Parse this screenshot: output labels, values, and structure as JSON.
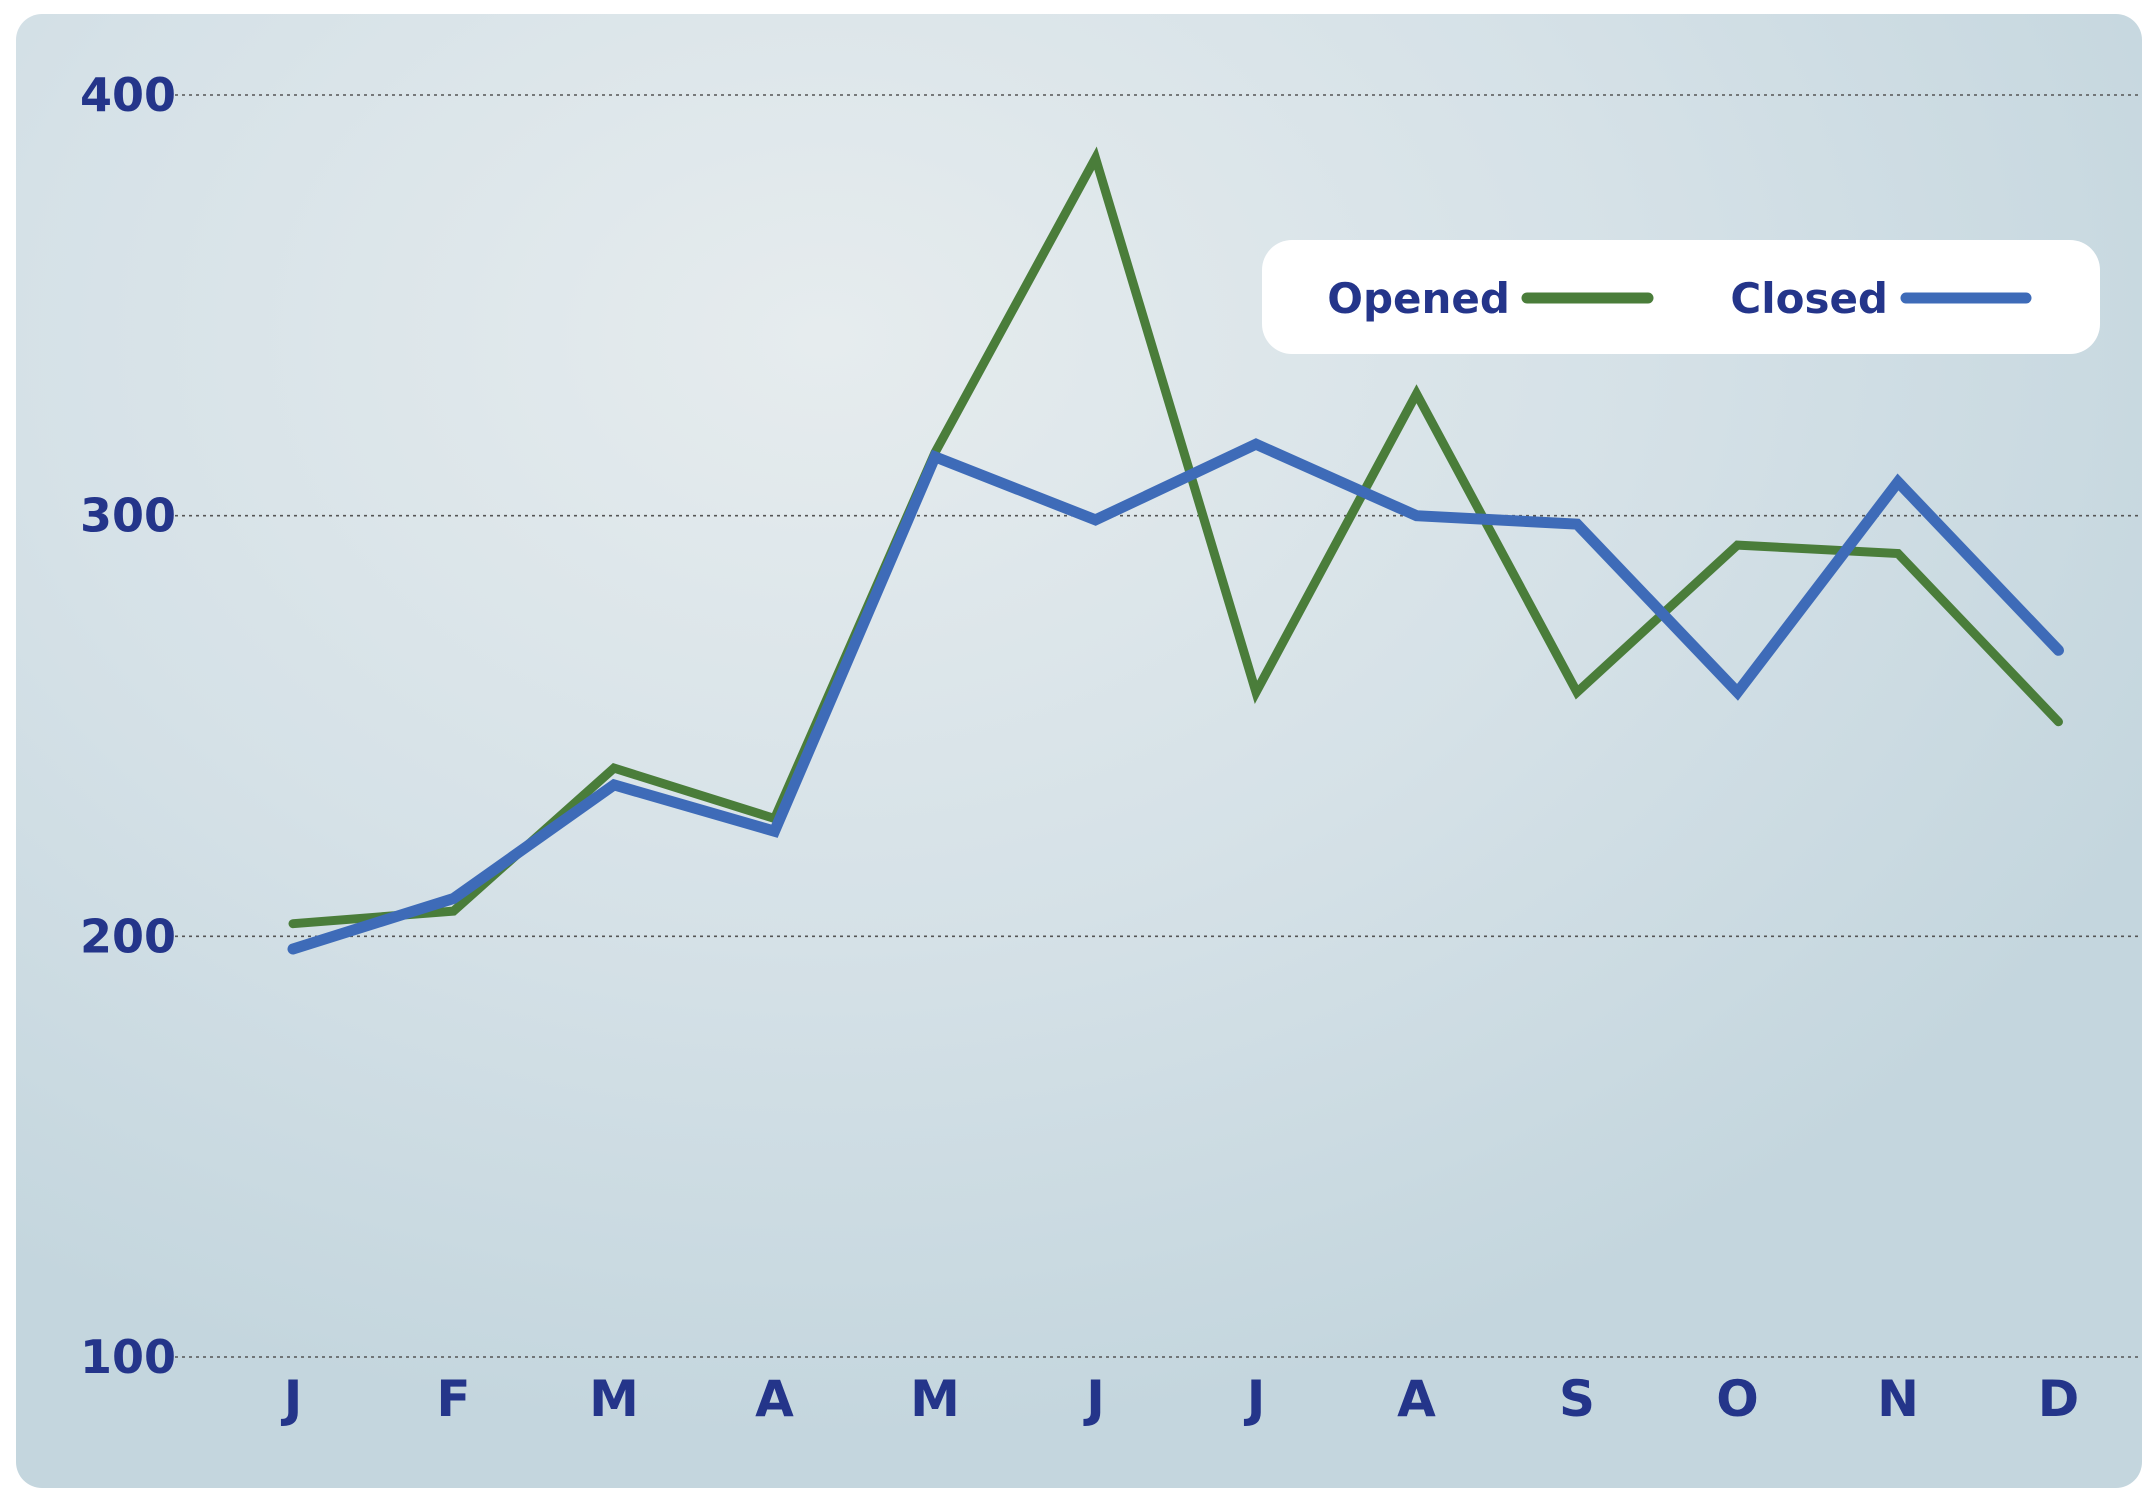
{
  "chart_data": {
    "type": "line",
    "title": "",
    "xlabel": "",
    "ylabel": "",
    "categories": [
      "J",
      "F",
      "M",
      "A",
      "M",
      "J",
      "J",
      "A",
      "S",
      "O",
      "N",
      "D"
    ],
    "ylim": [
      100,
      400
    ],
    "y_ticks": [
      "100",
      "200",
      "300",
      "400"
    ],
    "grid": "horizontal dotted",
    "legend_position": "top-right",
    "series": [
      {
        "name": "Opened",
        "color": "#4a7d3a",
        "values": [
          203,
          206,
          240,
          228,
          315,
          385,
          258,
          329,
          258,
          293,
          291,
          251
        ]
      },
      {
        "name": "Closed",
        "color": "#3e6bb8",
        "values": [
          197,
          209,
          236,
          225,
          314,
          299,
          317,
          300,
          298,
          258,
          308,
          268
        ]
      }
    ]
  },
  "colors": {
    "text": "#24358a",
    "gridline": "#555555",
    "legend_bg": "#ffffff"
  }
}
